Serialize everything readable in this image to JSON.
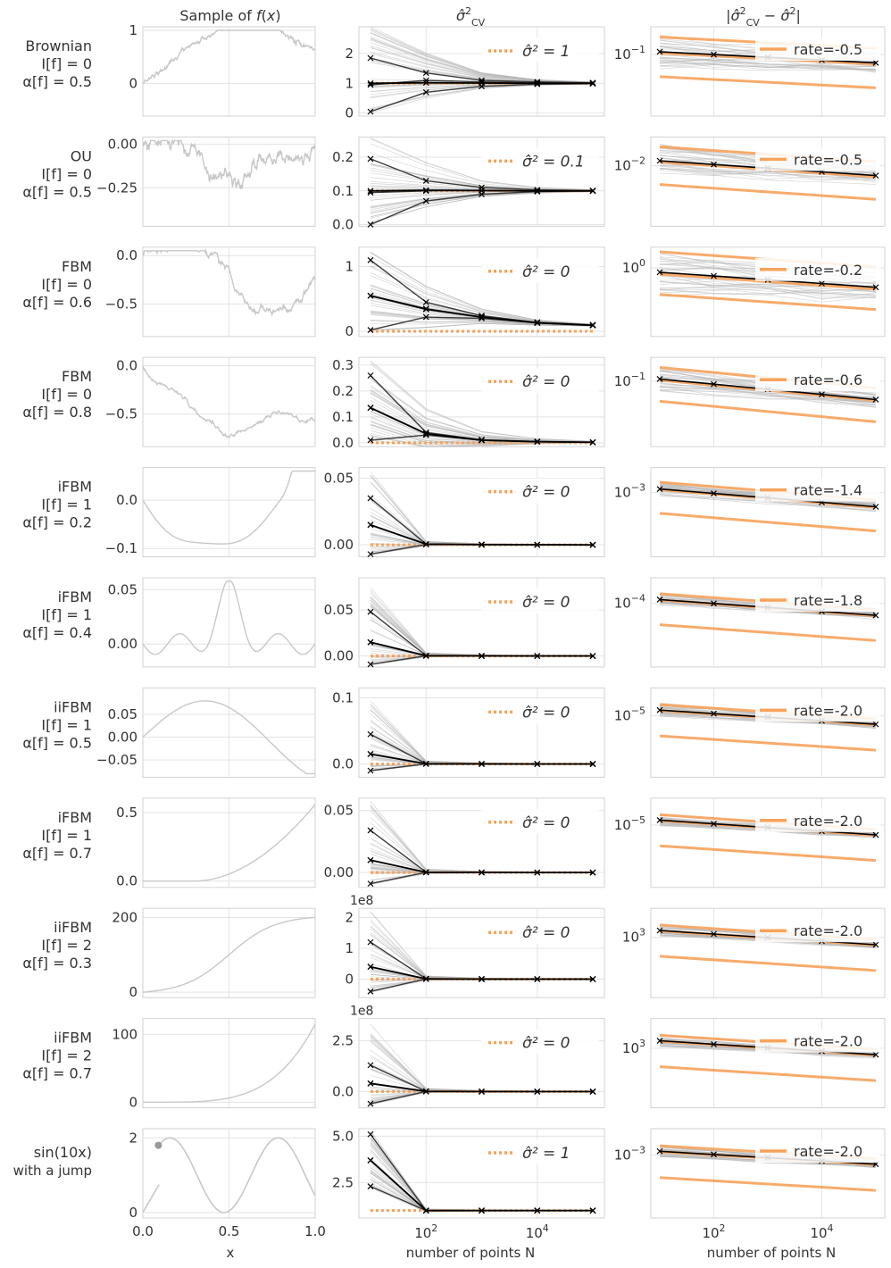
{
  "figure": {
    "column_titles": [
      "Sample of f(x)",
      "σ̂²_CV",
      "|σ̂²_CV − σ̂²|"
    ],
    "bottom_xlabel_left": "x",
    "bottom_xlabel_mid": "number of points N",
    "bottom_xlabel_right": "number of points N",
    "left_xticks": [
      "0.0",
      "0.5",
      "1.0"
    ],
    "mid_xticks": [
      {
        "base": "10",
        "exp": "2"
      },
      {
        "base": "10",
        "exp": "4"
      }
    ],
    "right_xticks": [
      {
        "base": "10",
        "exp": "2"
      },
      {
        "base": "10",
        "exp": "4"
      }
    ]
  },
  "colors": {
    "sample": "#c8c8c8",
    "dark": "#3a3a3a",
    "thin": "#b4b4b4",
    "mean": "#000000",
    "orange": "#f7a35c",
    "grid": "#e3e3e3",
    "frame": "#d2d2d2"
  },
  "chart_data": [
    {
      "row": 1,
      "row_label": [
        "Brownian",
        "I[f] = 0",
        "α[f] = 0.5"
      ],
      "sample": {
        "type": "line",
        "yticks": [
          "0",
          "1"
        ],
        "yrange": [
          -0.55,
          1.0
        ]
      },
      "cv": {
        "type": "line",
        "x": [
          10,
          100,
          1000,
          10000,
          100000
        ],
        "yticks": [
          "0",
          "1",
          "2"
        ],
        "ylim": [
          -0.1,
          2.9
        ],
        "legend": "σ̂² = 1",
        "target": 1.0,
        "dark_series": [
          [
            1.85,
            1.35,
            1.1,
            1.05,
            1.02
          ],
          [
            0.95,
            1.1,
            1.05,
            1.02,
            1.01
          ],
          [
            0.05,
            0.7,
            0.9,
            0.97,
            0.99
          ]
        ],
        "mean": [
          1.0,
          1.02,
          1.01,
          1.0,
          1.0
        ]
      },
      "err": {
        "type": "line",
        "scale": "log",
        "yticks": [
          {
            "base": "10",
            "exp": "−1"
          }
        ],
        "legend": "rate=-0.5",
        "rate": -0.5,
        "mean_start": 0.11,
        "mean_end": 0.075
      }
    },
    {
      "row": 2,
      "row_label": [
        "OU",
        "I[f] = 0",
        "α[f] = 0.5"
      ],
      "sample": {
        "type": "line",
        "yticks": [
          "0.00",
          "−0.25"
        ],
        "yrange": [
          -0.45,
          0.02
        ]
      },
      "cv": {
        "type": "line",
        "x": [
          10,
          100,
          1000,
          10000,
          100000
        ],
        "yticks": [
          "0.0",
          "0.1",
          "0.2"
        ],
        "ylim": [
          -0.005,
          0.26
        ],
        "legend": "σ̂² = 0.1",
        "target": 0.1,
        "dark_series": [
          [
            0.195,
            0.13,
            0.11,
            0.103,
            0.101
          ],
          [
            0.095,
            0.1,
            0.101,
            0.1,
            0.1
          ],
          [
            0.0,
            0.07,
            0.09,
            0.098,
            0.1
          ]
        ],
        "mean": [
          0.1,
          0.102,
          0.101,
          0.1,
          0.1
        ]
      },
      "err": {
        "type": "line",
        "scale": "log",
        "yticks": [
          {
            "base": "10",
            "exp": "−2"
          }
        ],
        "legend": "rate=-0.5",
        "rate": -0.5,
        "mean_start": 0.012,
        "mean_end": 0.007
      }
    },
    {
      "row": 3,
      "row_label": [
        "FBM",
        "I[f] = 0",
        "α[f] = 0.6"
      ],
      "sample": {
        "type": "line",
        "yticks": [
          "0.0",
          "−0.5"
        ],
        "yrange": [
          -0.8,
          0.05
        ]
      },
      "cv": {
        "type": "line",
        "x": [
          10,
          100,
          1000,
          10000,
          100000
        ],
        "yticks": [
          "0",
          "1"
        ],
        "ylim": [
          -0.08,
          1.3
        ],
        "legend": "σ̂² = 0",
        "target": 0.0,
        "dark_series": [
          [
            1.1,
            0.45,
            0.24,
            0.14,
            0.1
          ],
          [
            0.55,
            0.35,
            0.22,
            0.13,
            0.095
          ],
          [
            0.02,
            0.22,
            0.2,
            0.13,
            0.09
          ]
        ],
        "mean": [
          0.55,
          0.34,
          0.22,
          0.13,
          0.093
        ]
      },
      "err": {
        "type": "line",
        "scale": "log",
        "yticks": [
          {
            "base": "10",
            "exp": "0"
          }
        ],
        "legend": "rate=-0.2",
        "rate": -0.2,
        "mean_start": 0.9,
        "mean_end": 0.62
      }
    },
    {
      "row": 4,
      "row_label": [
        "FBM",
        "I[f] = 0",
        "α[f] = 0.8"
      ],
      "sample": {
        "type": "line",
        "yticks": [
          "0.0",
          "−0.5"
        ],
        "yrange": [
          -0.8,
          0.05
        ]
      },
      "cv": {
        "type": "line",
        "x": [
          10,
          100,
          1000,
          10000,
          100000
        ],
        "yticks": [
          "0.0",
          "0.1",
          "0.2",
          "0.3"
        ],
        "ylim": [
          -0.015,
          0.33
        ],
        "legend": "σ̂² = 0",
        "target": 0.0,
        "dark_series": [
          [
            0.26,
            0.04,
            0.012,
            0.005,
            0.002
          ],
          [
            0.135,
            0.035,
            0.01,
            0.004,
            0.002
          ],
          [
            0.01,
            0.03,
            0.01,
            0.004,
            0.002
          ]
        ],
        "mean": [
          0.135,
          0.035,
          0.01,
          0.004,
          0.002
        ]
      },
      "err": {
        "type": "line",
        "scale": "log",
        "yticks": [
          {
            "base": "10",
            "exp": "−1"
          }
        ],
        "legend": "rate=-0.6",
        "rate": -0.6,
        "mean_start": 0.11,
        "mean_end": 0.045
      }
    },
    {
      "row": 5,
      "row_label": [
        "iFBM",
        "I[f] = 1",
        "α[f] = 0.2"
      ],
      "sample": {
        "type": "line",
        "yticks": [
          "0.0",
          "−0.1"
        ],
        "yrange": [
          -0.11,
          0.06
        ]
      },
      "cv": {
        "type": "line",
        "x": [
          10,
          100,
          1000,
          10000,
          100000
        ],
        "yticks": [
          "0.00",
          "0.05"
        ],
        "ylim": [
          -0.009,
          0.058
        ],
        "legend": "σ̂² = 0",
        "target": 0.0,
        "dark_series": [
          [
            0.035,
            0.0005,
            0.0002,
            0.0001,
            0.0
          ],
          [
            0.015,
            0.0005,
            0.0002,
            0.0001,
            0.0
          ],
          [
            -0.007,
            0.0003,
            0.0001,
            0.0,
            0.0
          ]
        ],
        "mean": [
          0.015,
          0.0005,
          0.0002,
          0.0001,
          0.0
        ]
      },
      "err": {
        "type": "line",
        "scale": "log",
        "yticks": [
          {
            "base": "10",
            "exp": "−3"
          }
        ],
        "legend": "rate=-1.4",
        "rate": -1.4,
        "mean_start": 0.0013,
        "mean_end": 0.00035
      }
    },
    {
      "row": 6,
      "row_label": [
        "iFBM",
        "I[f] = 1",
        "α[f] = 0.4"
      ],
      "sample": {
        "type": "line",
        "yticks": [
          "0.05",
          "0.00"
        ],
        "yrange": [
          -0.018,
          0.058
        ]
      },
      "cv": {
        "type": "line",
        "x": [
          10,
          100,
          1000,
          10000,
          100000
        ],
        "yticks": [
          "0.00",
          "0.05"
        ],
        "ylim": [
          -0.012,
          0.085
        ],
        "legend": "σ̂² = 0",
        "target": 0.0,
        "dark_series": [
          [
            0.048,
            0.0004,
            0.0001,
            0.0,
            0.0
          ],
          [
            0.015,
            0.0003,
            0.0001,
            0.0,
            0.0
          ],
          [
            -0.009,
            0.0002,
            0.0,
            0.0,
            0.0
          ]
        ],
        "mean": [
          0.015,
          0.0003,
          0.0001,
          0.0,
          0.0
        ]
      },
      "err": {
        "type": "line",
        "scale": "log",
        "yticks": [
          {
            "base": "10",
            "exp": "−4"
          }
        ],
        "legend": "rate=-1.8",
        "rate": -1.8,
        "mean_start": 0.00014,
        "mean_end": 3.5e-05
      }
    },
    {
      "row": 7,
      "row_label": [
        "iiFBM",
        "I[f] = 1",
        "α[f] = 0.5"
      ],
      "sample": {
        "type": "line",
        "yticks": [
          "0.05",
          "0.00",
          "−0.05"
        ],
        "yrange": [
          -0.08,
          0.1
        ]
      },
      "cv": {
        "type": "line",
        "x": [
          10,
          100,
          1000,
          10000,
          100000
        ],
        "yticks": [
          "0.0",
          "0.1"
        ],
        "ylim": [
          -0.02,
          0.115
        ],
        "legend": "σ̂² = 0",
        "target": 0.0,
        "dark_series": [
          [
            0.045,
            0.0004,
            0.0001,
            0.0,
            0.0
          ],
          [
            0.015,
            0.0003,
            0.0001,
            0.0,
            0.0
          ],
          [
            -0.01,
            0.0002,
            0.0,
            0.0,
            0.0
          ]
        ],
        "mean": [
          0.015,
          0.0003,
          0.0001,
          0.0,
          0.0
        ]
      },
      "err": {
        "type": "line",
        "scale": "log",
        "yticks": [
          {
            "base": "10",
            "exp": "−5"
          }
        ],
        "legend": "rate=-2.0",
        "rate": -2.0,
        "mean_start": 1.7e-05,
        "mean_end": 4.5e-06
      }
    },
    {
      "row": 8,
      "row_label": [
        "iFBM",
        "I[f] = 1",
        "α[f] = 0.7"
      ],
      "sample": {
        "type": "line",
        "yticks": [
          "0.5",
          "0.0"
        ],
        "yrange": [
          -0.02,
          0.58
        ]
      },
      "cv": {
        "type": "line",
        "x": [
          10,
          100,
          1000,
          10000,
          100000
        ],
        "yticks": [
          "0.00",
          "0.05"
        ],
        "ylim": [
          -0.012,
          0.06
        ],
        "legend": "σ̂² = 0",
        "target": 0.0,
        "dark_series": [
          [
            0.034,
            0.0003,
            0.0001,
            0.0,
            0.0
          ],
          [
            0.01,
            0.0002,
            0.0001,
            0.0,
            0.0
          ],
          [
            -0.009,
            0.0001,
            0.0,
            0.0,
            0.0
          ]
        ],
        "mean": [
          0.01,
          0.0002,
          0.0001,
          0.0,
          0.0
        ]
      },
      "err": {
        "type": "line",
        "scale": "log",
        "yticks": [
          {
            "base": "10",
            "exp": "−5"
          }
        ],
        "legend": "rate=-2.0",
        "rate": -2.0,
        "mean_start": 1.6e-05,
        "mean_end": 4e-06
      }
    },
    {
      "row": 9,
      "row_label": [
        "iiFBM",
        "I[f] = 2",
        "α[f] = 0.3"
      ],
      "sample": {
        "type": "line",
        "yticks": [
          "200",
          "0"
        ],
        "yrange": [
          -5,
          215
        ]
      },
      "cv": {
        "type": "line",
        "x": [
          10,
          100,
          1000,
          10000,
          100000
        ],
        "offset_text": "1e8",
        "yticks": [
          "0",
          "1",
          "2"
        ],
        "ylim": [
          -0.6,
          2.3
        ],
        "legend": "σ̂² = 0",
        "target": 0.0,
        "dark_series": [
          [
            1.2,
            0.01,
            0.002,
            0.0,
            0.0
          ],
          [
            0.4,
            0.008,
            0.001,
            0.0,
            0.0
          ],
          [
            -0.4,
            0.005,
            0.001,
            0.0,
            0.0
          ]
        ],
        "mean": [
          0.4,
          0.008,
          0.001,
          0.0,
          0.0
        ]
      },
      "err": {
        "type": "line",
        "scale": "log",
        "yticks": [
          {
            "base": "10",
            "exp": "3"
          }
        ],
        "legend": "rate=-2.0",
        "rate": -2.0,
        "mean_start": 1900,
        "mean_end": 500
      }
    },
    {
      "row": 10,
      "row_label": [
        "iiFBM",
        "I[f] = 2",
        "α[f] = 0.7"
      ],
      "sample": {
        "type": "line",
        "yticks": [
          "100",
          "0"
        ],
        "yrange": [
          -3,
          118
        ]
      },
      "cv": {
        "type": "line",
        "x": [
          10,
          100,
          1000,
          10000,
          100000
        ],
        "offset_text": "1e8",
        "yticks": [
          "0.0",
          "2.5"
        ],
        "ylim": [
          -0.8,
          3.6
        ],
        "legend": "σ̂² = 0",
        "target": 0.0,
        "dark_series": [
          [
            1.3,
            0.01,
            0.002,
            0.0,
            0.0
          ],
          [
            0.4,
            0.008,
            0.001,
            0.0,
            0.0
          ],
          [
            -0.6,
            0.005,
            0.001,
            0.0,
            0.0
          ]
        ],
        "mean": [
          0.4,
          0.008,
          0.001,
          0.0,
          0.0
        ]
      },
      "err": {
        "type": "line",
        "scale": "log",
        "yticks": [
          {
            "base": "10",
            "exp": "3"
          }
        ],
        "legend": "rate=-2.0",
        "rate": -2.0,
        "mean_start": 2000,
        "mean_end": 550
      }
    },
    {
      "row": 11,
      "row_label": [
        "sin(10x)",
        "with a jump"
      ],
      "sample": {
        "type": "line",
        "yticks": [
          "2",
          "0"
        ],
        "yrange": [
          -0.05,
          2.15
        ]
      },
      "cv": {
        "type": "line",
        "x": [
          10,
          100,
          1000,
          10000,
          100000
        ],
        "yticks": [
          "2.5",
          "5.0"
        ],
        "ylim": [
          0.6,
          5.4
        ],
        "legend": "σ̂² = 1",
        "target": 1.0,
        "dark_series": [
          [
            5.1,
            1.0,
            1.0,
            1.0,
            1.0
          ],
          [
            3.7,
            1.0,
            1.0,
            1.0,
            1.0
          ],
          [
            2.3,
            1.0,
            1.0,
            1.0,
            1.0
          ]
        ],
        "mean": [
          3.7,
          1.0,
          1.0,
          1.0,
          1.0
        ]
      },
      "err": {
        "type": "line",
        "scale": "log",
        "yticks": [
          {
            "base": "10",
            "exp": "−3"
          }
        ],
        "legend": "rate=-2.0",
        "rate": -2.0,
        "mean_start": 0.0014,
        "mean_end": 0.00043
      }
    }
  ]
}
